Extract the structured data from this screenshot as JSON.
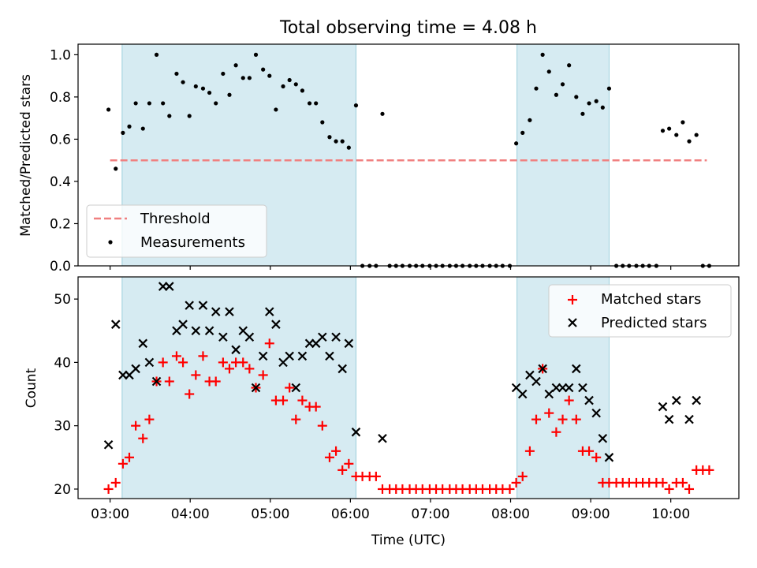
{
  "title": "Total observing time = 4.08 h",
  "chart_data": [
    {
      "type": "scatter",
      "ylabel": "Matched/Predicted stars",
      "xlim": [
        2.6,
        10.85
      ],
      "ylim": [
        0,
        1.05
      ],
      "xticks": [
        3,
        4,
        5,
        6,
        7,
        8,
        9,
        10
      ],
      "xticklabels": [
        "",
        "",
        "",
        "",
        "",
        "",
        "",
        ""
      ],
      "yticks": [
        0,
        0.2,
        0.4,
        0.6,
        0.8,
        1.0
      ],
      "yticklabels": [
        "0.0",
        "0.2",
        "0.4",
        "0.6",
        "0.8",
        "1.0"
      ],
      "shaded_intervals": [
        [
          3.15,
          6.07
        ],
        [
          8.08,
          9.23
        ]
      ],
      "threshold": {
        "name": "Threshold",
        "value": 0.5,
        "x_range": [
          3.0,
          10.45
        ],
        "color": "#f08080"
      },
      "legend_position": "lower-left",
      "series": [
        {
          "name": "Measurements",
          "marker": "dot",
          "color": "#000000",
          "x": [
            2.98,
            3.07,
            3.16,
            3.24,
            3.32,
            3.41,
            3.49,
            3.58,
            3.66,
            3.74,
            3.83,
            3.91,
            3.99,
            4.07,
            4.16,
            4.24,
            4.32,
            4.41,
            4.49,
            4.57,
            4.66,
            4.74,
            4.82,
            4.91,
            4.99,
            5.07,
            5.16,
            5.24,
            5.32,
            5.4,
            5.49,
            5.57,
            5.65,
            5.74,
            5.82,
            5.9,
            5.98,
            6.07,
            6.15,
            6.24,
            6.32,
            6.4,
            6.49,
            6.57,
            6.65,
            6.74,
            6.82,
            6.9,
            6.99,
            7.07,
            7.15,
            7.24,
            7.32,
            7.4,
            7.49,
            7.57,
            7.65,
            7.74,
            7.82,
            7.9,
            7.99,
            8.07,
            8.15,
            8.24,
            8.32,
            8.4,
            8.48,
            8.57,
            8.65,
            8.73,
            8.82,
            8.9,
            8.98,
            9.07,
            9.15,
            9.23,
            9.32,
            9.4,
            9.48,
            9.57,
            9.65,
            9.73,
            9.82,
            9.9,
            9.98,
            10.07,
            10.15,
            10.23,
            10.32,
            10.4,
            10.48
          ],
          "y": [
            0.74,
            0.46,
            0.63,
            0.66,
            0.77,
            0.65,
            0.77,
            1.0,
            0.77,
            0.71,
            0.91,
            0.87,
            0.71,
            0.85,
            0.84,
            0.82,
            0.77,
            0.91,
            0.81,
            0.95,
            0.89,
            0.89,
            1.0,
            0.93,
            0.9,
            0.74,
            0.85,
            0.88,
            0.86,
            0.83,
            0.77,
            0.77,
            0.68,
            0.61,
            0.59,
            0.59,
            0.56,
            0.76,
            0.0,
            0.0,
            0.0,
            0.72,
            0.0,
            0.0,
            0.0,
            0.0,
            0.0,
            0.0,
            0.0,
            0.0,
            0.0,
            0.0,
            0.0,
            0.0,
            0.0,
            0.0,
            0.0,
            0.0,
            0.0,
            0.0,
            0.0,
            0.58,
            0.63,
            0.69,
            0.84,
            1.0,
            0.92,
            0.81,
            0.86,
            0.95,
            0.8,
            0.72,
            0.77,
            0.78,
            0.75,
            0.84,
            0.0,
            0.0,
            0.0,
            0.0,
            0.0,
            0.0,
            0.0,
            0.64,
            0.65,
            0.62,
            0.68,
            0.59,
            0.62,
            0.0,
            0.0
          ]
        }
      ]
    },
    {
      "type": "scatter",
      "ylabel": "Count",
      "xlabel": "Time (UTC)",
      "xlim": [
        2.6,
        10.85
      ],
      "ylim": [
        18.5,
        53.5
      ],
      "xticks": [
        3,
        4,
        5,
        6,
        7,
        8,
        9,
        10
      ],
      "xticklabels": [
        "03:00",
        "04:00",
        "05:00",
        "06:00",
        "07:00",
        "08:00",
        "09:00",
        "10:00"
      ],
      "yticks": [
        20,
        30,
        40,
        50
      ],
      "yticklabels": [
        "20",
        "30",
        "40",
        "50"
      ],
      "shaded_intervals": [
        [
          3.15,
          6.07
        ],
        [
          8.08,
          9.23
        ]
      ],
      "legend_position": "upper-right",
      "series": [
        {
          "name": "Matched stars",
          "marker": "plus",
          "color": "#ff0000",
          "x": [
            2.98,
            3.07,
            3.16,
            3.24,
            3.32,
            3.41,
            3.49,
            3.58,
            3.66,
            3.74,
            3.83,
            3.91,
            3.99,
            4.07,
            4.16,
            4.24,
            4.32,
            4.41,
            4.49,
            4.57,
            4.66,
            4.74,
            4.82,
            4.91,
            4.99,
            5.07,
            5.16,
            5.24,
            5.32,
            5.4,
            5.49,
            5.57,
            5.65,
            5.74,
            5.82,
            5.9,
            5.98,
            6.07,
            6.15,
            6.24,
            6.32,
            6.4,
            6.49,
            6.57,
            6.65,
            6.74,
            6.82,
            6.9,
            6.99,
            7.07,
            7.15,
            7.24,
            7.32,
            7.4,
            7.49,
            7.57,
            7.65,
            7.74,
            7.82,
            7.9,
            7.99,
            8.07,
            8.15,
            8.24,
            8.32,
            8.4,
            8.48,
            8.57,
            8.65,
            8.73,
            8.82,
            8.9,
            8.98,
            9.07,
            9.15,
            9.23,
            9.32,
            9.4,
            9.48,
            9.57,
            9.65,
            9.73,
            9.82,
            9.9,
            9.98,
            10.07,
            10.15,
            10.23,
            10.32,
            10.4,
            10.48
          ],
          "y": [
            20,
            21,
            24,
            25,
            30,
            28,
            31,
            37,
            40,
            37,
            41,
            40,
            35,
            38,
            41,
            37,
            37,
            40,
            39,
            40,
            40,
            39,
            36,
            38,
            43,
            34,
            34,
            36,
            31,
            34,
            33,
            33,
            30,
            25,
            26,
            23,
            24,
            22,
            22,
            22,
            22,
            20,
            20,
            20,
            20,
            20,
            20,
            20,
            20,
            20,
            20,
            20,
            20,
            20,
            20,
            20,
            20,
            20,
            20,
            20,
            20,
            21,
            22,
            26,
            31,
            39,
            32,
            29,
            31,
            34,
            31,
            26,
            26,
            25,
            21,
            21,
            21,
            21,
            21,
            21,
            21,
            21,
            21,
            21,
            20,
            21,
            21,
            20,
            23,
            23,
            23
          ]
        },
        {
          "name": "Predicted stars",
          "marker": "x",
          "color": "#000000",
          "x": [
            2.98,
            3.07,
            3.16,
            3.24,
            3.32,
            3.41,
            3.49,
            3.58,
            3.66,
            3.74,
            3.83,
            3.91,
            3.99,
            4.07,
            4.16,
            4.24,
            4.32,
            4.41,
            4.49,
            4.57,
            4.66,
            4.74,
            4.82,
            4.91,
            4.99,
            5.07,
            5.16,
            5.24,
            5.32,
            5.4,
            5.49,
            5.57,
            5.65,
            5.74,
            5.82,
            5.9,
            5.98,
            6.07,
            6.4,
            8.07,
            8.15,
            8.24,
            8.32,
            8.4,
            8.48,
            8.57,
            8.65,
            8.73,
            8.82,
            8.9,
            8.98,
            9.07,
            9.15,
            9.23,
            9.9,
            9.98,
            10.07,
            10.23,
            10.32
          ],
          "y": [
            27,
            46,
            38,
            38,
            39,
            43,
            40,
            37,
            52,
            52,
            45,
            46,
            49,
            45,
            49,
            45,
            48,
            44,
            48,
            42,
            45,
            44,
            36,
            41,
            48,
            46,
            40,
            41,
            36,
            41,
            43,
            43,
            44,
            41,
            44,
            39,
            43,
            29,
            28,
            36,
            35,
            38,
            37,
            39,
            35,
            36,
            36,
            36,
            39,
            36,
            34,
            32,
            28,
            25,
            33,
            31,
            34,
            31,
            34
          ]
        }
      ]
    }
  ]
}
